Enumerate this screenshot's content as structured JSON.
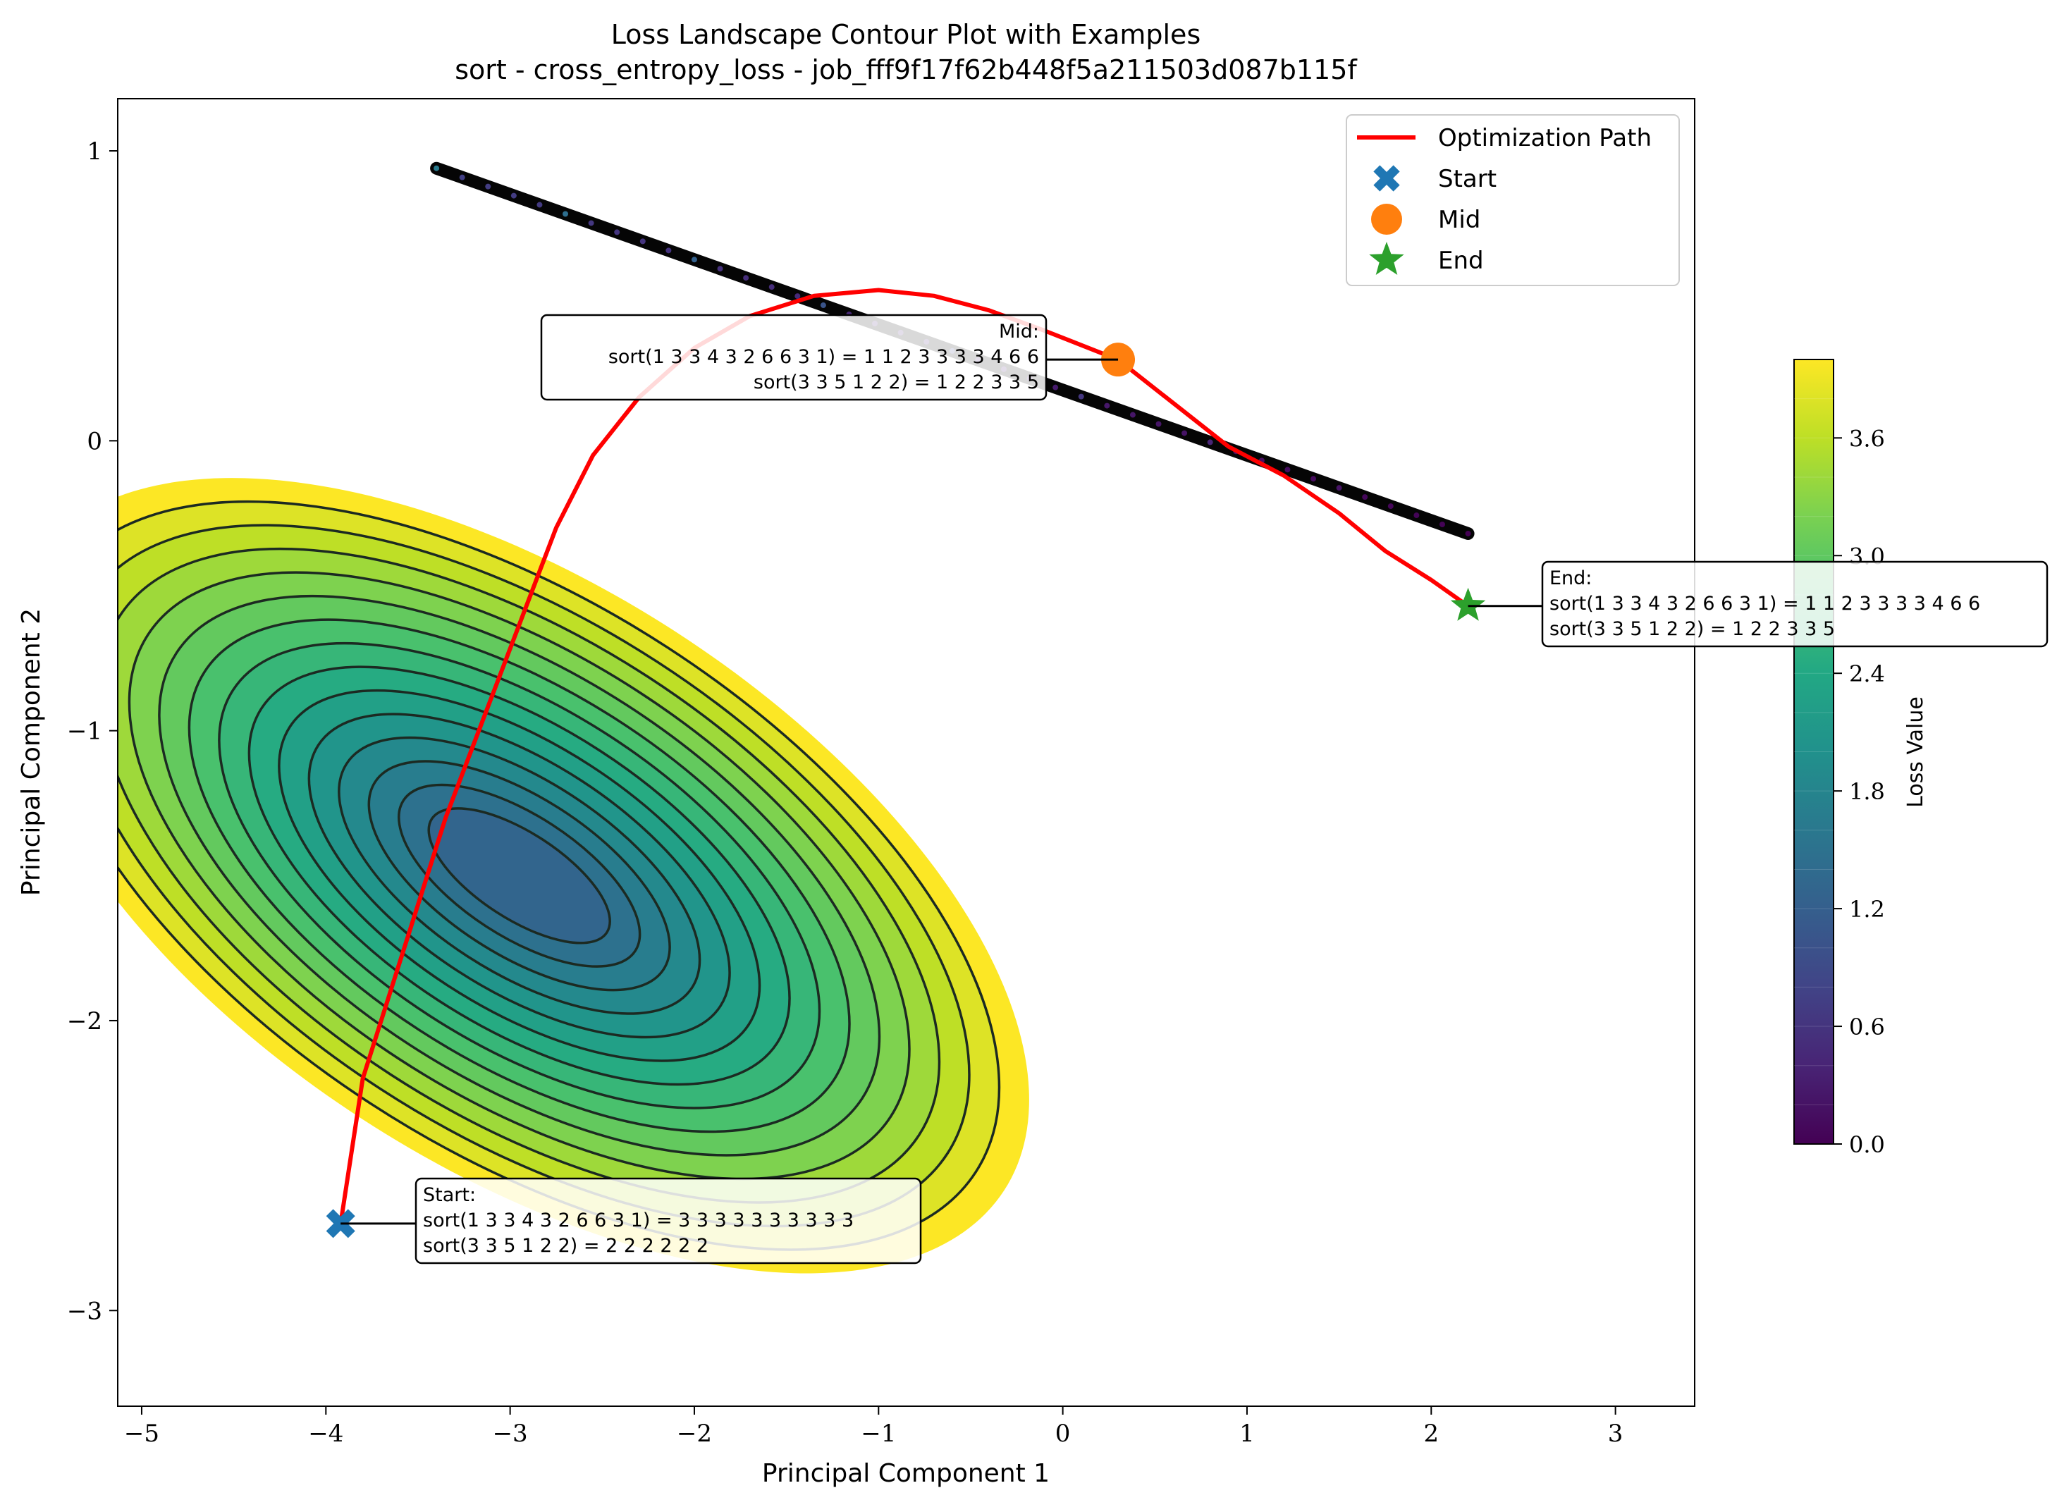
{
  "chart_data": {
    "type": "contour",
    "title": "Loss Landscape Contour Plot with Examples",
    "subtitle": "sort - cross_entropy_loss - job_fff9f17f62b448f5a211503d087b115f",
    "xlabel": "Principal Component 1",
    "ylabel": "Principal Component 2",
    "xlim": [
      -5.13,
      3.43
    ],
    "ylim": [
      -3.33,
      1.18
    ],
    "xticks": [
      -5,
      -4,
      -3,
      -2,
      -1,
      0,
      1,
      2,
      3
    ],
    "xtick_labels": [
      "−5",
      "−4",
      "−3",
      "−2",
      "−1",
      "0",
      "1",
      "2",
      "3"
    ],
    "yticks": [
      1,
      0,
      -1,
      -2,
      -3
    ],
    "ytick_labels": [
      "1",
      "0",
      "−1",
      "−2",
      "−3"
    ],
    "grid": false,
    "colormap": "viridis",
    "colorbar": {
      "label": "Loss Value",
      "range": [
        0.0,
        4.0
      ],
      "ticks": [
        0.0,
        0.6,
        1.2,
        1.8,
        2.4,
        3.0,
        3.6
      ],
      "tick_labels": [
        "0.0",
        "0.6",
        "1.2",
        "1.8",
        "2.4",
        "3.0",
        "3.6"
      ],
      "levels": 20
    },
    "basin": {
      "minimum": {
        "x": -2.95,
        "y": -1.5,
        "loss": 1.1
      },
      "contour_levels_drawn": 14
    },
    "valley_band": {
      "from": {
        "x": -3.4,
        "y": 0.94
      },
      "to": {
        "x": 2.2,
        "y": -0.32
      },
      "loss_range": [
        0.0,
        0.5
      ]
    },
    "legend": {
      "placement": "upper right",
      "entries": [
        {
          "label": "Optimization Path",
          "marker": "line",
          "color": "#ff0000"
        },
        {
          "label": "Start",
          "marker": "X",
          "color": "#1f77b4"
        },
        {
          "label": "Mid",
          "marker": "circle",
          "color": "#ff7f0e"
        },
        {
          "label": "End",
          "marker": "star",
          "color": "#2ca02c"
        }
      ]
    },
    "series": [
      {
        "name": "Optimization Path",
        "color": "#ff0000",
        "x": [
          -3.92,
          -3.8,
          -3.65,
          -3.5,
          -3.35,
          -3.2,
          -3.05,
          -2.9,
          -2.75,
          -2.55,
          -2.3,
          -2.0,
          -1.7,
          -1.35,
          -1.0,
          -0.7,
          -0.4,
          -0.1,
          0.3,
          0.6,
          0.9,
          1.2,
          1.5,
          1.75,
          2.0,
          2.2
        ],
        "y": [
          -2.7,
          -2.2,
          -1.9,
          -1.6,
          -1.3,
          -1.05,
          -0.8,
          -0.55,
          -0.3,
          -0.05,
          0.15,
          0.32,
          0.43,
          0.5,
          0.52,
          0.5,
          0.45,
          0.38,
          0.28,
          0.13,
          -0.02,
          -0.12,
          -0.25,
          -0.38,
          -0.48,
          -0.57
        ]
      }
    ],
    "points": [
      {
        "name": "Start",
        "x": -3.92,
        "y": -2.7,
        "color": "#1f77b4"
      },
      {
        "name": "Mid",
        "x": 0.3,
        "y": 0.28,
        "color": "#ff7f0e"
      },
      {
        "name": "End",
        "x": 2.2,
        "y": -0.57,
        "color": "#2ca02c"
      }
    ],
    "annotations": [
      {
        "point": "Start",
        "lines": [
          "Start:",
          "sort(1 3 3 4 3 2 6 6 3 1) = 3 3 3 3 3 3 3 3 3 3",
          "sort(3 3 5 1 2 2) = 2 2 2 2 2 2"
        ]
      },
      {
        "point": "Mid",
        "lines": [
          "Mid:",
          "sort(1 3 3 4 3 2 6 6 3 1) = 1 1 2 3 3 3 3 4 6 6",
          "sort(3 3 5 1 2 2) = 1 2 2 3 3 5"
        ]
      },
      {
        "point": "End",
        "lines": [
          "End:",
          "sort(1 3 3 4 3 2 6 6 3 1) = 1 1 2 3 3 3 3 4 6 6",
          "sort(3 3 5 1 2 2) = 1 2 2 3 3 5"
        ]
      }
    ]
  }
}
